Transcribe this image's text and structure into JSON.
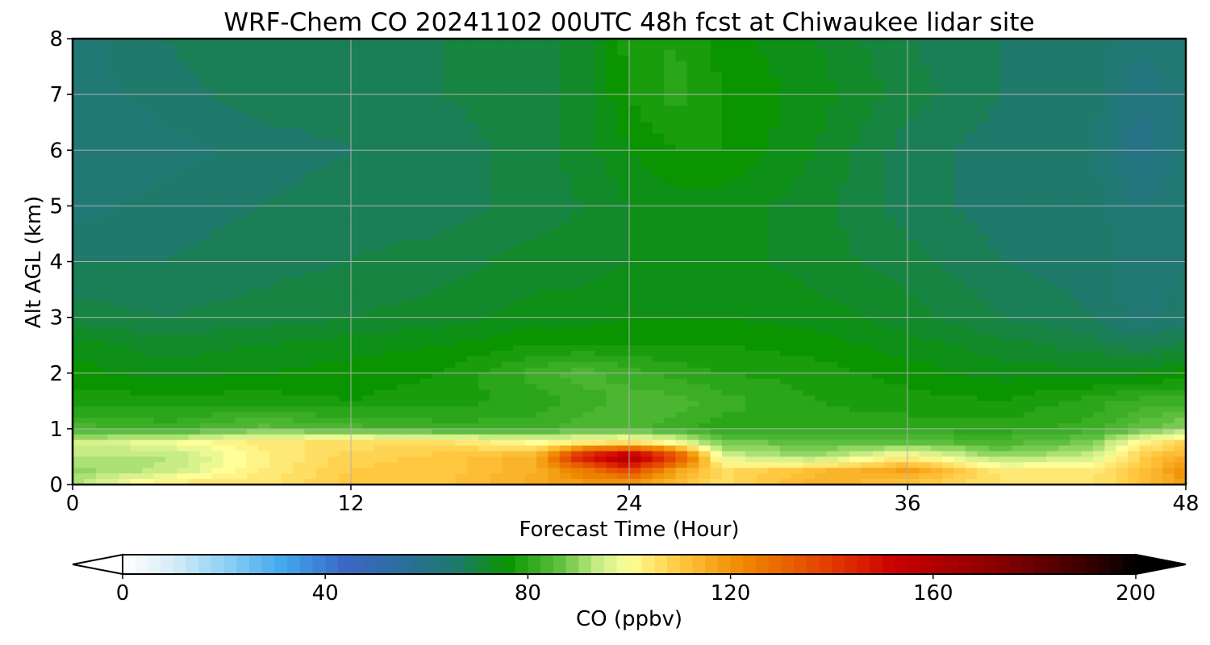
{
  "chart_data": {
    "type": "heatmap",
    "title": "WRF-Chem CO  20241102 00UTC 48h fcst at Chiwaukee lidar site",
    "xlabel": "Forecast Time (Hour)",
    "ylabel": "Alt AGL (km)",
    "xlim": [
      0,
      48
    ],
    "ylim": [
      0,
      8
    ],
    "x_ticks": [
      "0",
      "12",
      "24",
      "36",
      "48"
    ],
    "y_ticks": [
      "0",
      "1",
      "2",
      "3",
      "4",
      "5",
      "6",
      "7",
      "8"
    ],
    "grid": true,
    "colorbar": {
      "label": "CO  (ppbv)",
      "range": [
        0,
        200
      ],
      "ticks": [
        "0",
        "40",
        "80",
        "120",
        "160",
        "200"
      ],
      "extend": "both",
      "colors": [
        {
          "value": 0,
          "color": "#ffffff"
        },
        {
          "value": 10,
          "color": "#d6ecf7"
        },
        {
          "value": 20,
          "color": "#8fd1f5"
        },
        {
          "value": 32,
          "color": "#3fa7ec"
        },
        {
          "value": 44,
          "color": "#3c66c4"
        },
        {
          "value": 56,
          "color": "#2a6e9a"
        },
        {
          "value": 66,
          "color": "#1f7a6c"
        },
        {
          "value": 76,
          "color": "#0a9400"
        },
        {
          "value": 86,
          "color": "#5cbf3e"
        },
        {
          "value": 94,
          "color": "#c7ec86"
        },
        {
          "value": 100,
          "color": "#ffff9a"
        },
        {
          "value": 110,
          "color": "#ffc840"
        },
        {
          "value": 122,
          "color": "#f08b00"
        },
        {
          "value": 140,
          "color": "#e23a00"
        },
        {
          "value": 152,
          "color": "#cc0000"
        },
        {
          "value": 172,
          "color": "#8c0000"
        },
        {
          "value": 190,
          "color": "#3a0000"
        },
        {
          "value": 200,
          "color": "#000000"
        }
      ]
    },
    "field": {
      "x_hours": [
        0,
        4,
        8,
        12,
        16,
        20,
        22,
        24,
        26,
        28,
        32,
        36,
        40,
        44,
        46,
        48
      ],
      "z_km": [
        0,
        0.25,
        0.5,
        0.75,
        1.0,
        1.5,
        2.0,
        2.5,
        3,
        4,
        5,
        6,
        7,
        8
      ],
      "co_ppbv": [
        [
          92,
          105,
          104,
          110,
          110,
          116,
          118,
          116,
          112,
          106,
          115,
          110,
          105,
          105,
          110,
          118
        ],
        [
          90,
          94,
          103,
          109,
          110,
          115,
          125,
          138,
          118,
          106,
          112,
          118,
          104,
          104,
          110,
          122
        ],
        [
          93,
          92,
          102,
          108,
          110,
          115,
          150,
          165,
          140,
          96,
          90,
          102,
          90,
          95,
          108,
          115
        ],
        [
          95,
          98,
          104,
          106,
          106,
          100,
          104,
          106,
          100,
          88,
          86,
          86,
          84,
          88,
          102,
          108
        ],
        [
          84,
          82,
          86,
          84,
          82,
          82,
          84,
          84,
          82,
          80,
          80,
          80,
          80,
          82,
          86,
          90
        ],
        [
          78,
          78,
          78,
          77,
          78,
          80,
          82,
          84,
          84,
          82,
          79,
          78,
          77,
          80,
          82,
          82
        ],
        [
          76,
          74,
          75,
          76,
          77,
          82,
          84,
          82,
          80,
          79,
          78,
          76,
          74,
          74,
          74,
          76
        ],
        [
          74,
          72,
          73,
          74,
          75,
          77,
          77,
          77,
          77,
          77,
          76,
          74,
          72,
          70,
          68,
          70
        ],
        [
          70,
          69,
          70,
          71,
          72,
          74,
          74,
          75,
          75,
          75,
          74,
          72,
          69,
          67,
          64,
          66
        ],
        [
          67,
          67,
          68,
          69,
          70,
          72,
          72,
          73,
          74,
          74,
          72,
          70,
          67,
          66,
          64,
          65
        ],
        [
          64,
          66,
          67,
          68,
          68,
          70,
          71,
          73,
          74,
          74,
          72,
          68,
          66,
          66,
          63,
          64
        ],
        [
          63,
          64,
          66,
          67,
          68,
          70,
          72,
          75,
          77,
          77,
          73,
          68,
          66,
          65,
          60,
          64
        ],
        [
          64,
          66,
          68,
          68,
          69,
          70,
          72,
          77,
          80,
          77,
          74,
          70,
          67,
          66,
          61,
          64
        ],
        [
          64,
          67,
          69,
          69,
          69,
          70,
          72,
          78,
          79,
          76,
          73,
          69,
          67,
          66,
          64,
          65
        ]
      ]
    }
  }
}
